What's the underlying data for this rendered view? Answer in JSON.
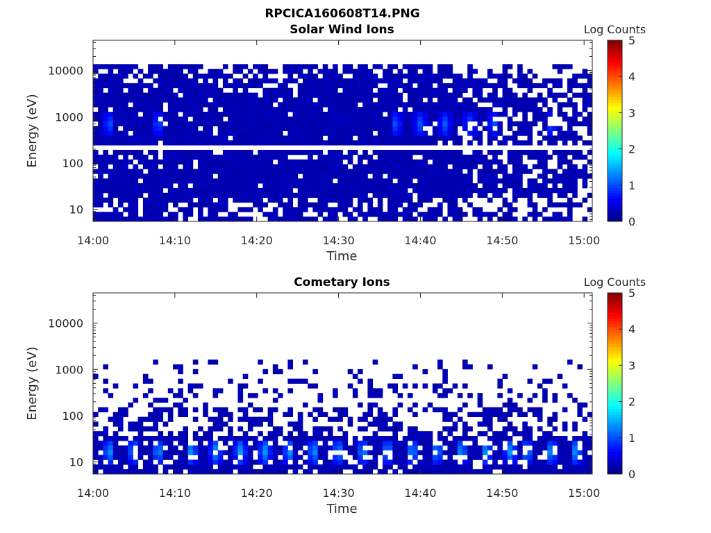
{
  "figure_title": "RPCICA160608T14.PNG",
  "chart_data": [
    {
      "type": "heatmap",
      "title": "Solar Wind Ions",
      "xlabel": "Time",
      "ylabel": "Energy (eV)",
      "xticks": [
        "14:00",
        "14:10",
        "14:20",
        "14:30",
        "14:40",
        "14:50",
        "15:00"
      ],
      "xlim_minutes": [
        0,
        61
      ],
      "yscale": "log",
      "ylim": [
        5.5,
        45000
      ],
      "yticks": [
        "10",
        "100",
        "1000",
        "10000"
      ],
      "colorbar": {
        "label": "Log Counts",
        "min": 0,
        "max": 5,
        "ticks": [
          "0",
          "1",
          "2",
          "3",
          "4",
          "5"
        ]
      },
      "colormap": "jet",
      "summary": {
        "dominant_log_counts": 0.2,
        "energy_band_with_data_eV": [
          6,
          15000
        ],
        "gap_energy_eV": 200,
        "peak_log_counts": 0.9,
        "peak_energy_eV": 700,
        "peak_times": [
          "14:02",
          "14:08",
          "14:37",
          "14:40",
          "14:43",
          "14:46",
          "14:49",
          "14:56"
        ]
      }
    },
    {
      "type": "heatmap",
      "title": "Cometary Ions",
      "xlabel": "Time",
      "ylabel": "Energy (eV)",
      "xticks": [
        "14:00",
        "14:10",
        "14:20",
        "14:30",
        "14:40",
        "14:50",
        "15:00"
      ],
      "xlim_minutes": [
        0,
        61
      ],
      "yscale": "log",
      "ylim": [
        5.5,
        45000
      ],
      "yticks": [
        "10",
        "100",
        "1000",
        "10000"
      ],
      "colorbar": {
        "label": "Log Counts",
        "min": 0,
        "max": 5,
        "ticks": [
          "0",
          "1",
          "2",
          "3",
          "4",
          "5"
        ]
      },
      "colormap": "jet",
      "summary": {
        "dominant_log_counts": 0.2,
        "energy_band_with_data_eV": [
          6,
          1500
        ],
        "peak_log_counts": 1.3,
        "peak_energy_eV": 17,
        "peak_times": [
          "14:02",
          "14:05",
          "14:08",
          "14:12",
          "14:15",
          "14:18",
          "14:21",
          "14:24",
          "14:27",
          "14:30",
          "14:33",
          "14:36",
          "14:39",
          "14:42",
          "14:45",
          "14:48",
          "14:51",
          "14:53",
          "14:56",
          "14:59"
        ]
      }
    }
  ]
}
